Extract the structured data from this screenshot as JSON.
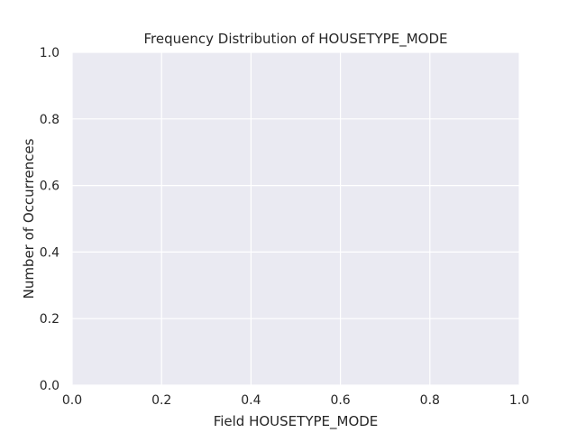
{
  "chart_data": {
    "type": "bar",
    "title": "Frequency Distribution of HOUSETYPE_MODE",
    "xlabel": "Field HOUSETYPE_MODE",
    "ylabel": "Number of Occurrences",
    "categories": [],
    "values": [],
    "xlim": [
      0.0,
      1.0
    ],
    "ylim": [
      0.0,
      1.0
    ],
    "xticks": [
      "0.0",
      "0.2",
      "0.4",
      "0.6",
      "0.8",
      "1.0"
    ],
    "yticks": [
      "0.0",
      "0.2",
      "0.4",
      "0.6",
      "0.8",
      "1.0"
    ],
    "grid": true,
    "background_color": "#eaeaf2",
    "grid_color": "#ffffff",
    "text_color": "#262626"
  }
}
